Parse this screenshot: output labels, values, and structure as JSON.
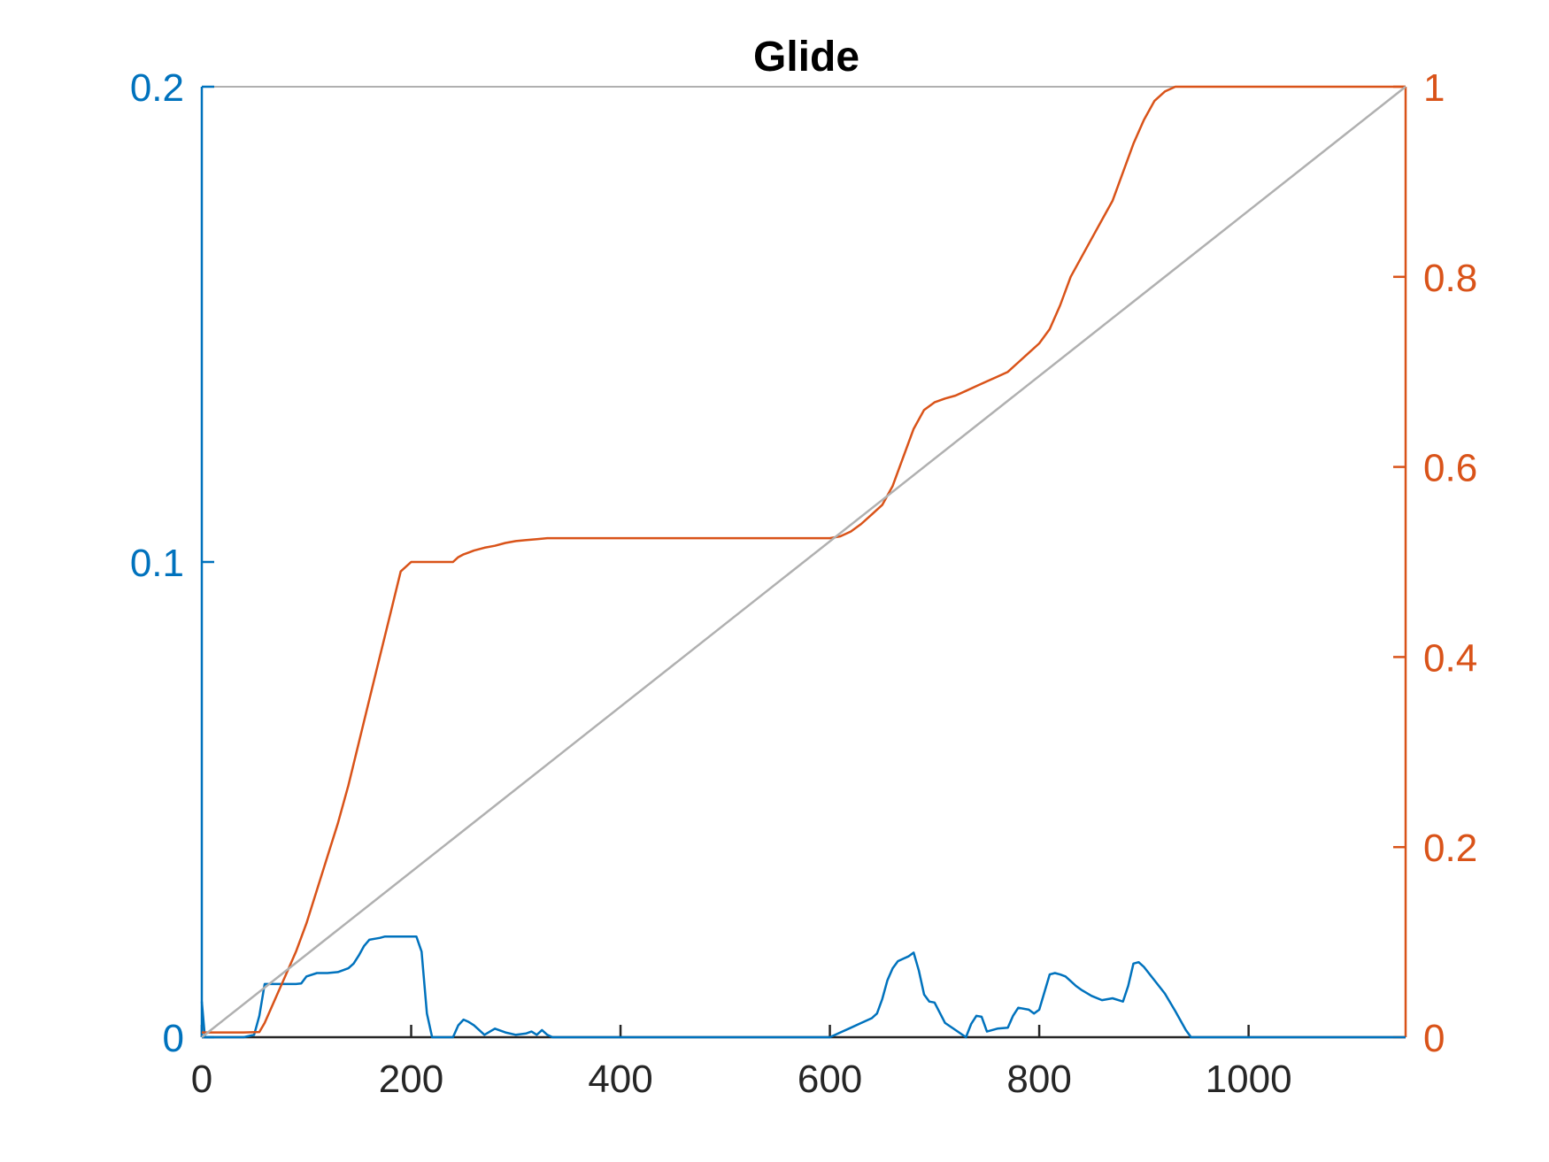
{
  "chart_data": {
    "type": "line",
    "title": "Glide",
    "xlabel": "",
    "ylabel_left": "",
    "ylabel_right": "",
    "xlim": [
      0,
      1150
    ],
    "ylim_left": [
      0,
      0.2
    ],
    "ylim_right": [
      0,
      1
    ],
    "x_ticks": [
      0,
      200,
      400,
      600,
      800,
      1000
    ],
    "y_left_ticks": [
      0,
      0.1,
      0.2
    ],
    "y_right_ticks": [
      0,
      0.2,
      0.4,
      0.6,
      0.8,
      1
    ],
    "grid": false,
    "legend": "none",
    "colors": {
      "left_axis": "#0072BD",
      "right_axis": "#D95319",
      "reference": "#B0B0B0",
      "axis": "#262626",
      "title": "#000000"
    },
    "series": [
      {
        "axis": "left",
        "color": "#0072BD",
        "x": [
          0,
          3,
          8,
          20,
          40,
          50,
          55,
          60,
          70,
          80,
          90,
          95,
          100,
          110,
          120,
          130,
          140,
          145,
          150,
          155,
          160,
          165,
          170,
          175,
          180,
          190,
          200,
          205,
          210,
          215,
          220,
          240,
          245,
          250,
          255,
          260,
          265,
          270,
          280,
          290,
          300,
          310,
          315,
          320,
          325,
          330,
          335,
          340,
          345,
          350,
          600,
          610,
          620,
          630,
          640,
          645,
          650,
          655,
          660,
          665,
          670,
          675,
          680,
          685,
          690,
          695,
          700,
          710,
          720,
          730,
          735,
          740,
          745,
          750,
          760,
          770,
          775,
          780,
          790,
          795,
          800,
          810,
          815,
          820,
          825,
          830,
          835,
          840,
          850,
          860,
          870,
          880,
          885,
          890,
          895,
          900,
          910,
          920,
          930,
          940,
          945,
          950,
          1150
        ],
        "y": [
          0.0075,
          0,
          0,
          0,
          0,
          0.0005,
          0.0045,
          0.0112,
          0.0112,
          0.0112,
          0.0112,
          0.0113,
          0.0128,
          0.0135,
          0.0135,
          0.0137,
          0.0145,
          0.0155,
          0.0172,
          0.0192,
          0.0205,
          0.0207,
          0.0209,
          0.0212,
          0.0212,
          0.0212,
          0.0212,
          0.0212,
          0.018,
          0.005,
          0,
          0,
          0.0025,
          0.0037,
          0.0032,
          0.0025,
          0.0015,
          0.0005,
          0.0018,
          0.001,
          0.0005,
          0.0008,
          0.0012,
          0.0005,
          0.0015,
          0.0005,
          0,
          0,
          0,
          0,
          0,
          0.001,
          0.002,
          0.003,
          0.004,
          0.005,
          0.008,
          0.012,
          0.0145,
          0.016,
          0.0165,
          0.017,
          0.0178,
          0.014,
          0.009,
          0.0075,
          0.0073,
          0.003,
          0.0015,
          0,
          0.0028,
          0.0045,
          0.0043,
          0.0012,
          0.0018,
          0.002,
          0.0045,
          0.0062,
          0.0058,
          0.005,
          0.0058,
          0.0132,
          0.0135,
          0.0132,
          0.0128,
          0.0118,
          0.0108,
          0.01,
          0.0087,
          0.0078,
          0.0082,
          0.0075,
          0.0108,
          0.0155,
          0.0158,
          0.0148,
          0.012,
          0.0092,
          0.0055,
          0.0015,
          0,
          0,
          0
        ]
      },
      {
        "axis": "right",
        "color": "#D95319",
        "x": [
          0,
          20,
          40,
          55,
          60,
          70,
          80,
          90,
          100,
          110,
          120,
          130,
          140,
          150,
          160,
          170,
          180,
          190,
          200,
          205,
          210,
          220,
          240,
          245,
          250,
          255,
          260,
          270,
          280,
          290,
          300,
          310,
          320,
          330,
          340,
          350,
          400,
          500,
          600,
          610,
          620,
          630,
          640,
          650,
          660,
          670,
          680,
          690,
          700,
          710,
          720,
          730,
          740,
          750,
          760,
          770,
          780,
          790,
          800,
          810,
          820,
          830,
          840,
          850,
          860,
          870,
          880,
          890,
          900,
          910,
          920,
          930,
          940,
          1150
        ],
        "y": [
          0.005,
          0.005,
          0.005,
          0.0055,
          0.015,
          0.04,
          0.065,
          0.09,
          0.12,
          0.155,
          0.19,
          0.225,
          0.265,
          0.31,
          0.355,
          0.4,
          0.445,
          0.49,
          0.5,
          0.5,
          0.5,
          0.5,
          0.5,
          0.505,
          0.508,
          0.51,
          0.512,
          0.515,
          0.517,
          0.52,
          0.522,
          0.523,
          0.524,
          0.525,
          0.525,
          0.525,
          0.525,
          0.525,
          0.525,
          0.527,
          0.532,
          0.54,
          0.55,
          0.56,
          0.58,
          0.61,
          0.64,
          0.66,
          0.668,
          0.672,
          0.675,
          0.68,
          0.685,
          0.69,
          0.695,
          0.7,
          0.71,
          0.72,
          0.73,
          0.745,
          0.77,
          0.8,
          0.82,
          0.84,
          0.86,
          0.88,
          0.91,
          0.94,
          0.965,
          0.985,
          0.995,
          1,
          1,
          1
        ]
      },
      {
        "axis": "right",
        "color": "#B0B0B0",
        "x": [
          0,
          1150
        ],
        "y": [
          0,
          1
        ]
      }
    ]
  }
}
